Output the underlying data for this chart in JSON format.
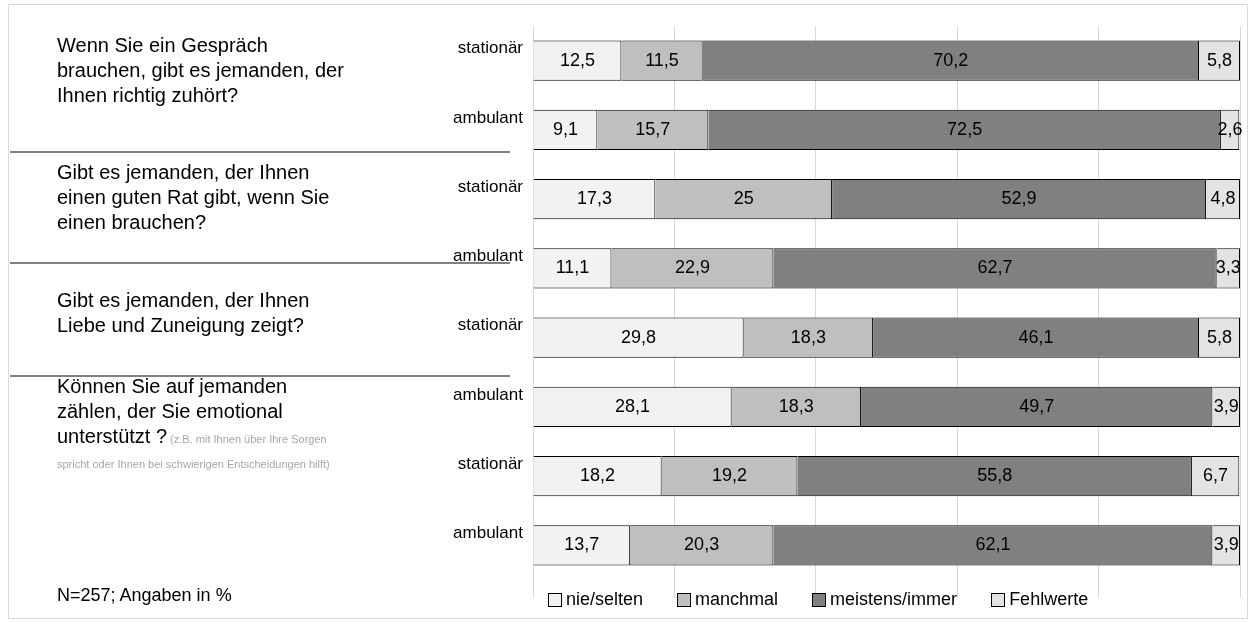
{
  "chart_data": {
    "type": "bar",
    "orientation": "horizontal",
    "stacked": true,
    "categories": [
      "stationär",
      "ambulant",
      "stationär",
      "ambulant",
      "stationär",
      "ambulant",
      "stationär",
      "ambulant"
    ],
    "series": [
      {
        "name": "nie/selten",
        "color": "#f2f2f2",
        "values": [
          12.5,
          9.1,
          17.3,
          11.1,
          29.8,
          28.1,
          18.2,
          13.7
        ],
        "value_labels": [
          "12,5",
          "9,1",
          "17,3",
          "11,1",
          "29,8",
          "28,1",
          "18,2",
          "13,7"
        ]
      },
      {
        "name": "manchmal",
        "color": "#bfbfbf",
        "values": [
          11.5,
          15.7,
          25,
          22.9,
          18.3,
          18.3,
          19.2,
          20.3
        ],
        "value_labels": [
          "11,5",
          "15,7",
          "25",
          "22,9",
          "18,3",
          "18,3",
          "19,2",
          "20,3"
        ]
      },
      {
        "name": "meistens/immer",
        "color": "#808080",
        "values": [
          70.2,
          72.5,
          52.9,
          62.7,
          46.1,
          49.7,
          55.8,
          62.1
        ],
        "value_labels": [
          "70,2",
          "72,5",
          "52,9",
          "62,7",
          "46,1",
          "49,7",
          "55,8",
          "62,1"
        ]
      },
      {
        "name": "Fehlwerte",
        "color": "#e3e3e3",
        "values": [
          5.8,
          2.6,
          4.8,
          3.3,
          5.8,
          3.9,
          6.7,
          3.9
        ],
        "value_labels": [
          "5,8",
          "2,6",
          "4,8",
          "3,3",
          "5,8",
          "3,9",
          "6,7",
          "3,9"
        ]
      }
    ],
    "xlim": [
      0,
      100
    ],
    "grid": "x",
    "legend": "bottom",
    "tick_labels": "y",
    "annotations": [
      "Wenn Sie ein Gespräch brauchen, gibt es jemanden, der Ihnen richtig zuhört?",
      "Gibt es jemanden, der Ihnen einen guten Rat gibt, wenn Sie einen brauchen?",
      "Gibt es jemanden, der Ihnen Liebe und Zuneigung zeigt?",
      "Können Sie auf jemanden zählen, der Sie emotional unterstützt ?",
      "(z.B. mit Ihnen über Ihre Sorgen spricht oder Ihnen bei schwierigen Entscheidungen hilft)",
      "N=257; Angaben in %"
    ]
  }
}
